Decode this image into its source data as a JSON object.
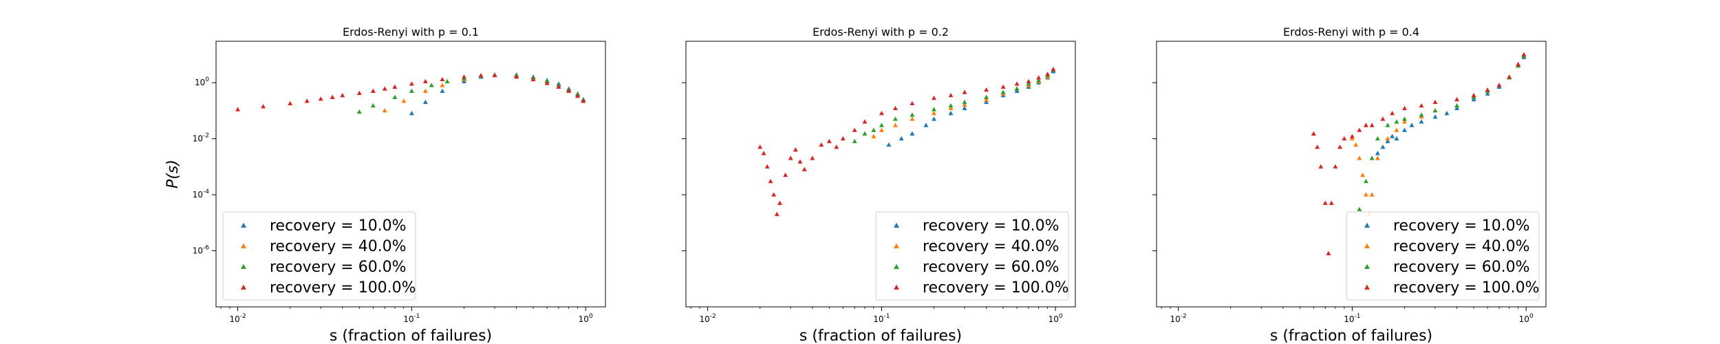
{
  "chart_data": [
    {
      "type": "scatter",
      "title": "Erdos-Renyi with p = 0.1",
      "xlabel": "s (fraction of failures)",
      "ylabel": "P(s)",
      "xscale": "log",
      "yscale": "log",
      "xlim": [
        0.0075,
        1.3
      ],
      "ylim": [
        1e-08,
        30
      ],
      "xtick_labels": [
        "10^-2",
        "10^-1",
        "10^0"
      ],
      "ytick_labels": [
        "10^-6",
        "10^-4",
        "10^-2",
        "10^0"
      ],
      "marker": "triangle",
      "legend_position": "lower-left",
      "series": [
        {
          "name": "recovery = 10.0%",
          "color": "#1f77b4",
          "x": [
            0.1,
            0.12,
            0.15,
            0.2,
            0.25,
            0.3,
            0.4,
            0.5,
            0.6,
            0.7,
            0.8,
            0.9,
            0.97
          ],
          "y": [
            0.08,
            0.2,
            0.5,
            1.1,
            1.6,
            1.9,
            1.9,
            1.6,
            1.2,
            0.9,
            0.6,
            0.4,
            0.25
          ]
        },
        {
          "name": "recovery = 40.0%",
          "color": "#ff7f0e",
          "x": [
            0.07,
            0.09,
            0.12,
            0.15,
            0.2,
            0.25,
            0.3,
            0.4,
            0.5,
            0.6,
            0.7,
            0.8,
            0.9,
            0.97
          ],
          "y": [
            0.1,
            0.22,
            0.5,
            0.8,
            1.3,
            1.7,
            1.9,
            1.8,
            1.5,
            1.1,
            0.8,
            0.55,
            0.38,
            0.24
          ]
        },
        {
          "name": "recovery = 60.0%",
          "color": "#2ca02c",
          "x": [
            0.05,
            0.06,
            0.08,
            0.1,
            0.13,
            0.16,
            0.2,
            0.25,
            0.3,
            0.4,
            0.5,
            0.6,
            0.7,
            0.8,
            0.9,
            0.97
          ],
          "y": [
            0.09,
            0.15,
            0.3,
            0.5,
            0.8,
            1.1,
            1.4,
            1.7,
            1.85,
            1.8,
            1.5,
            1.1,
            0.8,
            0.55,
            0.37,
            0.24
          ]
        },
        {
          "name": "recovery = 100.0%",
          "color": "#d62728",
          "x": [
            0.01,
            0.014,
            0.02,
            0.025,
            0.03,
            0.035,
            0.04,
            0.05,
            0.06,
            0.07,
            0.08,
            0.1,
            0.12,
            0.15,
            0.2,
            0.25,
            0.3,
            0.4,
            0.5,
            0.6,
            0.7,
            0.8,
            0.9,
            0.97
          ],
          "y": [
            0.11,
            0.14,
            0.18,
            0.22,
            0.26,
            0.3,
            0.35,
            0.42,
            0.5,
            0.6,
            0.7,
            0.9,
            1.1,
            1.3,
            1.6,
            1.8,
            1.8,
            1.6,
            1.3,
            0.95,
            0.7,
            0.5,
            0.33,
            0.22
          ]
        }
      ]
    },
    {
      "type": "scatter",
      "title": "Erdos-Renyi with p = 0.2",
      "xlabel": "s (fraction of failures)",
      "ylabel": "",
      "xscale": "log",
      "yscale": "log",
      "xlim": [
        0.0075,
        1.3
      ],
      "ylim": [
        1e-08,
        30
      ],
      "xtick_labels": [
        "10^-2",
        "10^-1",
        "10^0"
      ],
      "ytick_labels": [],
      "marker": "triangle",
      "legend_position": "lower-right",
      "series": [
        {
          "name": "recovery = 10.0%",
          "color": "#1f77b4",
          "x": [
            0.11,
            0.13,
            0.15,
            0.18,
            0.2,
            0.25,
            0.3,
            0.4,
            0.5,
            0.6,
            0.7,
            0.8,
            0.9,
            0.97
          ],
          "y": [
            0.006,
            0.01,
            0.015,
            0.03,
            0.05,
            0.08,
            0.12,
            0.2,
            0.35,
            0.5,
            0.7,
            1.0,
            1.5,
            2.5
          ]
        },
        {
          "name": "recovery = 40.0%",
          "color": "#ff7f0e",
          "x": [
            0.09,
            0.1,
            0.12,
            0.15,
            0.2,
            0.25,
            0.3,
            0.4,
            0.5,
            0.6,
            0.7,
            0.8,
            0.9,
            0.97
          ],
          "y": [
            0.012,
            0.02,
            0.03,
            0.05,
            0.08,
            0.12,
            0.16,
            0.24,
            0.4,
            0.6,
            0.8,
            1.1,
            1.6,
            2.8
          ]
        },
        {
          "name": "recovery = 60.0%",
          "color": "#2ca02c",
          "x": [
            0.07,
            0.08,
            0.09,
            0.1,
            0.12,
            0.15,
            0.2,
            0.25,
            0.3,
            0.4,
            0.5,
            0.6,
            0.7,
            0.8,
            0.9,
            0.97
          ],
          "y": [
            0.008,
            0.015,
            0.02,
            0.03,
            0.05,
            0.07,
            0.11,
            0.15,
            0.2,
            0.3,
            0.45,
            0.6,
            0.9,
            1.2,
            1.8,
            2.8
          ]
        },
        {
          "name": "recovery = 100.0%",
          "color": "#d62728",
          "x": [
            0.02,
            0.021,
            0.022,
            0.023,
            0.024,
            0.025,
            0.026,
            0.028,
            0.03,
            0.032,
            0.034,
            0.036,
            0.04,
            0.045,
            0.05,
            0.055,
            0.06,
            0.07,
            0.08,
            0.1,
            0.12,
            0.15,
            0.2,
            0.25,
            0.3,
            0.4,
            0.5,
            0.6,
            0.7,
            0.8,
            0.9,
            0.97
          ],
          "y": [
            0.005,
            0.003,
            0.001,
            0.0003,
            0.0001,
            2e-05,
            5e-05,
            0.0005,
            0.002,
            0.004,
            0.0015,
            0.0008,
            0.002,
            0.006,
            0.008,
            0.005,
            0.01,
            0.02,
            0.04,
            0.08,
            0.12,
            0.18,
            0.28,
            0.35,
            0.45,
            0.55,
            0.7,
            0.9,
            1.1,
            1.5,
            2.0,
            3.0
          ]
        }
      ]
    },
    {
      "type": "scatter",
      "title": "Erdos-Renyi with p = 0.4",
      "xlabel": "s (fraction of failures)",
      "ylabel": "",
      "xscale": "log",
      "yscale": "log",
      "xlim": [
        0.0075,
        1.3
      ],
      "ylim": [
        1e-08,
        30
      ],
      "xtick_labels": [
        "10^-2",
        "10^-1",
        "10^0"
      ],
      "ytick_labels": [],
      "marker": "triangle",
      "legend_position": "lower-right",
      "series": [
        {
          "name": "recovery = 10.0%",
          "color": "#1f77b4",
          "x": [
            0.14,
            0.15,
            0.16,
            0.17,
            0.18,
            0.2,
            0.22,
            0.25,
            0.3,
            0.35,
            0.4,
            0.5,
            0.6,
            0.7,
            0.8,
            0.9,
            0.97
          ],
          "y": [
            0.003,
            0.005,
            0.008,
            0.012,
            0.01,
            0.02,
            0.03,
            0.04,
            0.06,
            0.08,
            0.12,
            0.25,
            0.4,
            0.7,
            1.5,
            4.0,
            8.0
          ]
        },
        {
          "name": "recovery = 40.0%",
          "color": "#ff7f0e",
          "x": [
            0.1,
            0.105,
            0.11,
            0.115,
            0.12,
            0.125,
            0.13,
            0.14,
            0.16,
            0.18,
            0.2,
            0.25,
            0.3,
            0.4,
            0.5,
            0.6,
            0.7,
            0.8,
            0.9,
            0.97
          ],
          "y": [
            0.01,
            0.006,
            0.002,
            0.0005,
            0.0001,
            2e-05,
            0.0001,
            0.002,
            0.01,
            0.02,
            0.04,
            0.06,
            0.1,
            0.15,
            0.3,
            0.5,
            0.8,
            1.5,
            4.0,
            9.0
          ]
        },
        {
          "name": "recovery = 60.0%",
          "color": "#2ca02c",
          "x": [
            0.11,
            0.12,
            0.13,
            0.14,
            0.16,
            0.18,
            0.2,
            0.25,
            0.3,
            0.4,
            0.5,
            0.6,
            0.7,
            0.8,
            0.9,
            0.97
          ],
          "y": [
            3e-05,
            0.0003,
            0.002,
            0.01,
            0.03,
            0.04,
            0.05,
            0.07,
            0.1,
            0.15,
            0.3,
            0.5,
            0.8,
            1.5,
            4.0,
            9.0
          ]
        },
        {
          "name": "recovery = 100.0%",
          "color": "#d62728",
          "x": [
            0.06,
            0.063,
            0.066,
            0.07,
            0.073,
            0.076,
            0.08,
            0.085,
            0.09,
            0.1,
            0.11,
            0.12,
            0.13,
            0.15,
            0.17,
            0.2,
            0.25,
            0.3,
            0.4,
            0.5,
            0.6,
            0.7,
            0.8,
            0.9,
            0.97
          ],
          "y": [
            0.015,
            0.005,
            0.001,
            5e-05,
            8e-07,
            5e-05,
            0.001,
            0.005,
            0.01,
            0.012,
            0.02,
            0.03,
            0.03,
            0.05,
            0.08,
            0.12,
            0.15,
            0.2,
            0.25,
            0.35,
            0.55,
            0.8,
            1.6,
            4.5,
            10.0
          ]
        }
      ]
    }
  ]
}
